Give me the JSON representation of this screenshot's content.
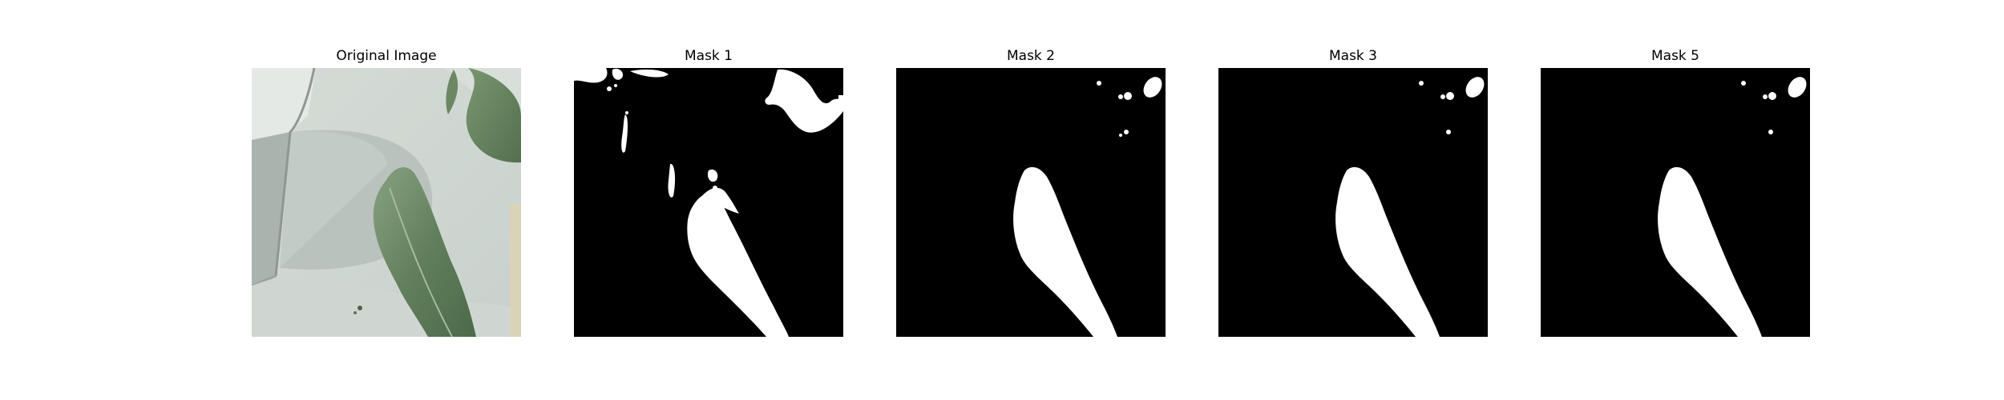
{
  "figure": {
    "panels": [
      {
        "title": "Original Image"
      },
      {
        "title": "Mask 1"
      },
      {
        "title": "Mask 2"
      },
      {
        "title": "Mask 3"
      },
      {
        "title": "Mask 5"
      }
    ]
  }
}
